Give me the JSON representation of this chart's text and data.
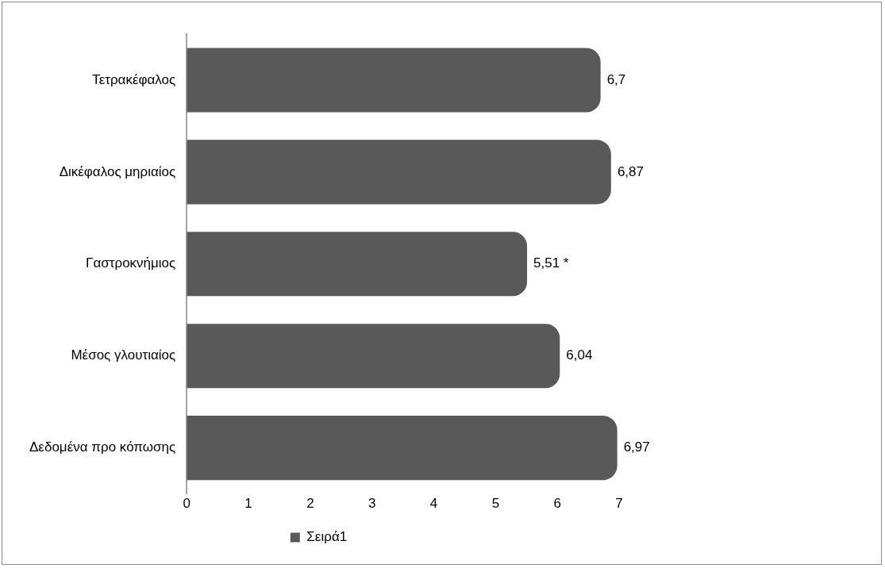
{
  "chart_data": {
    "type": "bar",
    "orientation": "horizontal",
    "categories": [
      "Τετρακέφαλος",
      "Δικέφαλος μηριαίος",
      "Γαστροκνήμιος",
      "Μέσος γλουτιαίος",
      "Δεδομένα προ κόπωσης"
    ],
    "series": [
      {
        "name": "Σειρά1",
        "color": "#595959",
        "values": [
          6.7,
          6.87,
          5.51,
          6.04,
          6.97
        ],
        "value_labels": [
          "6,7",
          "6,87",
          "5,51 *",
          "6,04",
          "6,97"
        ]
      }
    ],
    "xlim": [
      0,
      7
    ],
    "xticks": [
      0,
      1,
      2,
      3,
      4,
      5,
      6,
      7
    ],
    "grid": false,
    "legend": "bottom"
  }
}
